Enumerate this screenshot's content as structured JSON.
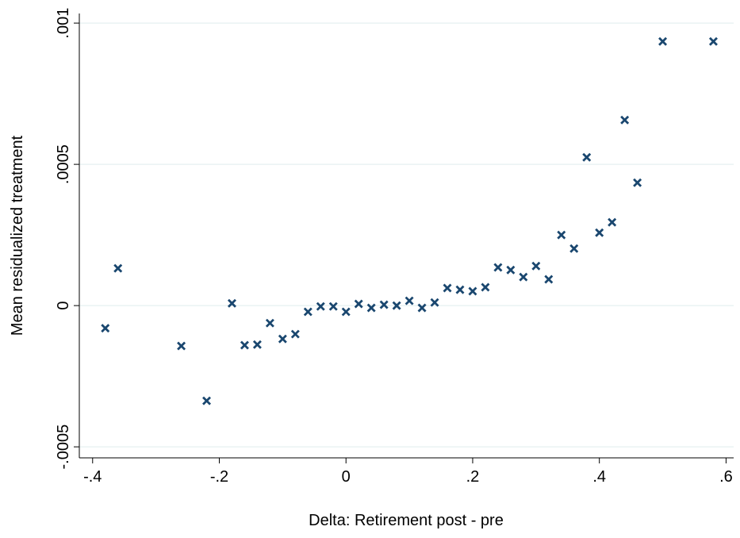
{
  "chart_data": {
    "type": "scatter",
    "x_label": "Delta: Retirement post - pre",
    "y_label": "Mean residualized treatment",
    "color": "#1a476f",
    "marker": "x",
    "grid": true,
    "x": [
      -0.38,
      -0.36,
      -0.26,
      -0.22,
      -0.18,
      -0.16,
      -0.14,
      -0.12,
      -0.1,
      -0.08,
      -0.06,
      -0.04,
      -0.02,
      0,
      0.02,
      0.04,
      0.06,
      0.08,
      0.1,
      0.12,
      0.14,
      0.16,
      0.18,
      0.2,
      0.22,
      0.24,
      0.26,
      0.28,
      0.3,
      0.32,
      0.34,
      0.36,
      0.38,
      0.4,
      0.42,
      0.44,
      0.46,
      0.5,
      0.58
    ],
    "values": [
      -8e-05,
      0.000132,
      -0.000143,
      -0.000337,
      8e-06,
      -0.00014,
      -0.000138,
      -6.2e-05,
      -0.000118,
      -0.000101,
      -2.2e-05,
      -3e-06,
      -3e-06,
      -2.2e-05,
      6e-06,
      -8e-06,
      3e-06,
      0,
      1.7e-05,
      -8e-06,
      1.1e-05,
      6.2e-05,
      5.6e-05,
      5.1e-05,
      6.5e-05,
      0.000135,
      0.000126,
      0.000101,
      0.00014,
      9.3e-05,
      0.00025,
      0.000202,
      0.000525,
      0.000258,
      0.000295,
      0.000657,
      0.000435,
      0.000935,
      0.000935
    ],
    "xlim": [
      -0.421,
      0.612
    ],
    "ylim": [
      -0.000539,
      0.001034
    ],
    "xticks": [
      {
        "value": -0.4,
        "label": "-.4"
      },
      {
        "value": -0.2,
        "label": "-.2"
      },
      0,
      {
        "value": 0.2,
        "label": ".2"
      },
      {
        "value": 0.4,
        "label": ".4"
      },
      {
        "value": 0.6,
        "label": ".6"
      }
    ],
    "yticks": [
      {
        "value": -0.0005,
        "label": "-.0005"
      },
      0,
      {
        "value": 0.0005,
        "label": ".0005"
      },
      {
        "value": 0.001,
        "label": ".001"
      }
    ]
  }
}
